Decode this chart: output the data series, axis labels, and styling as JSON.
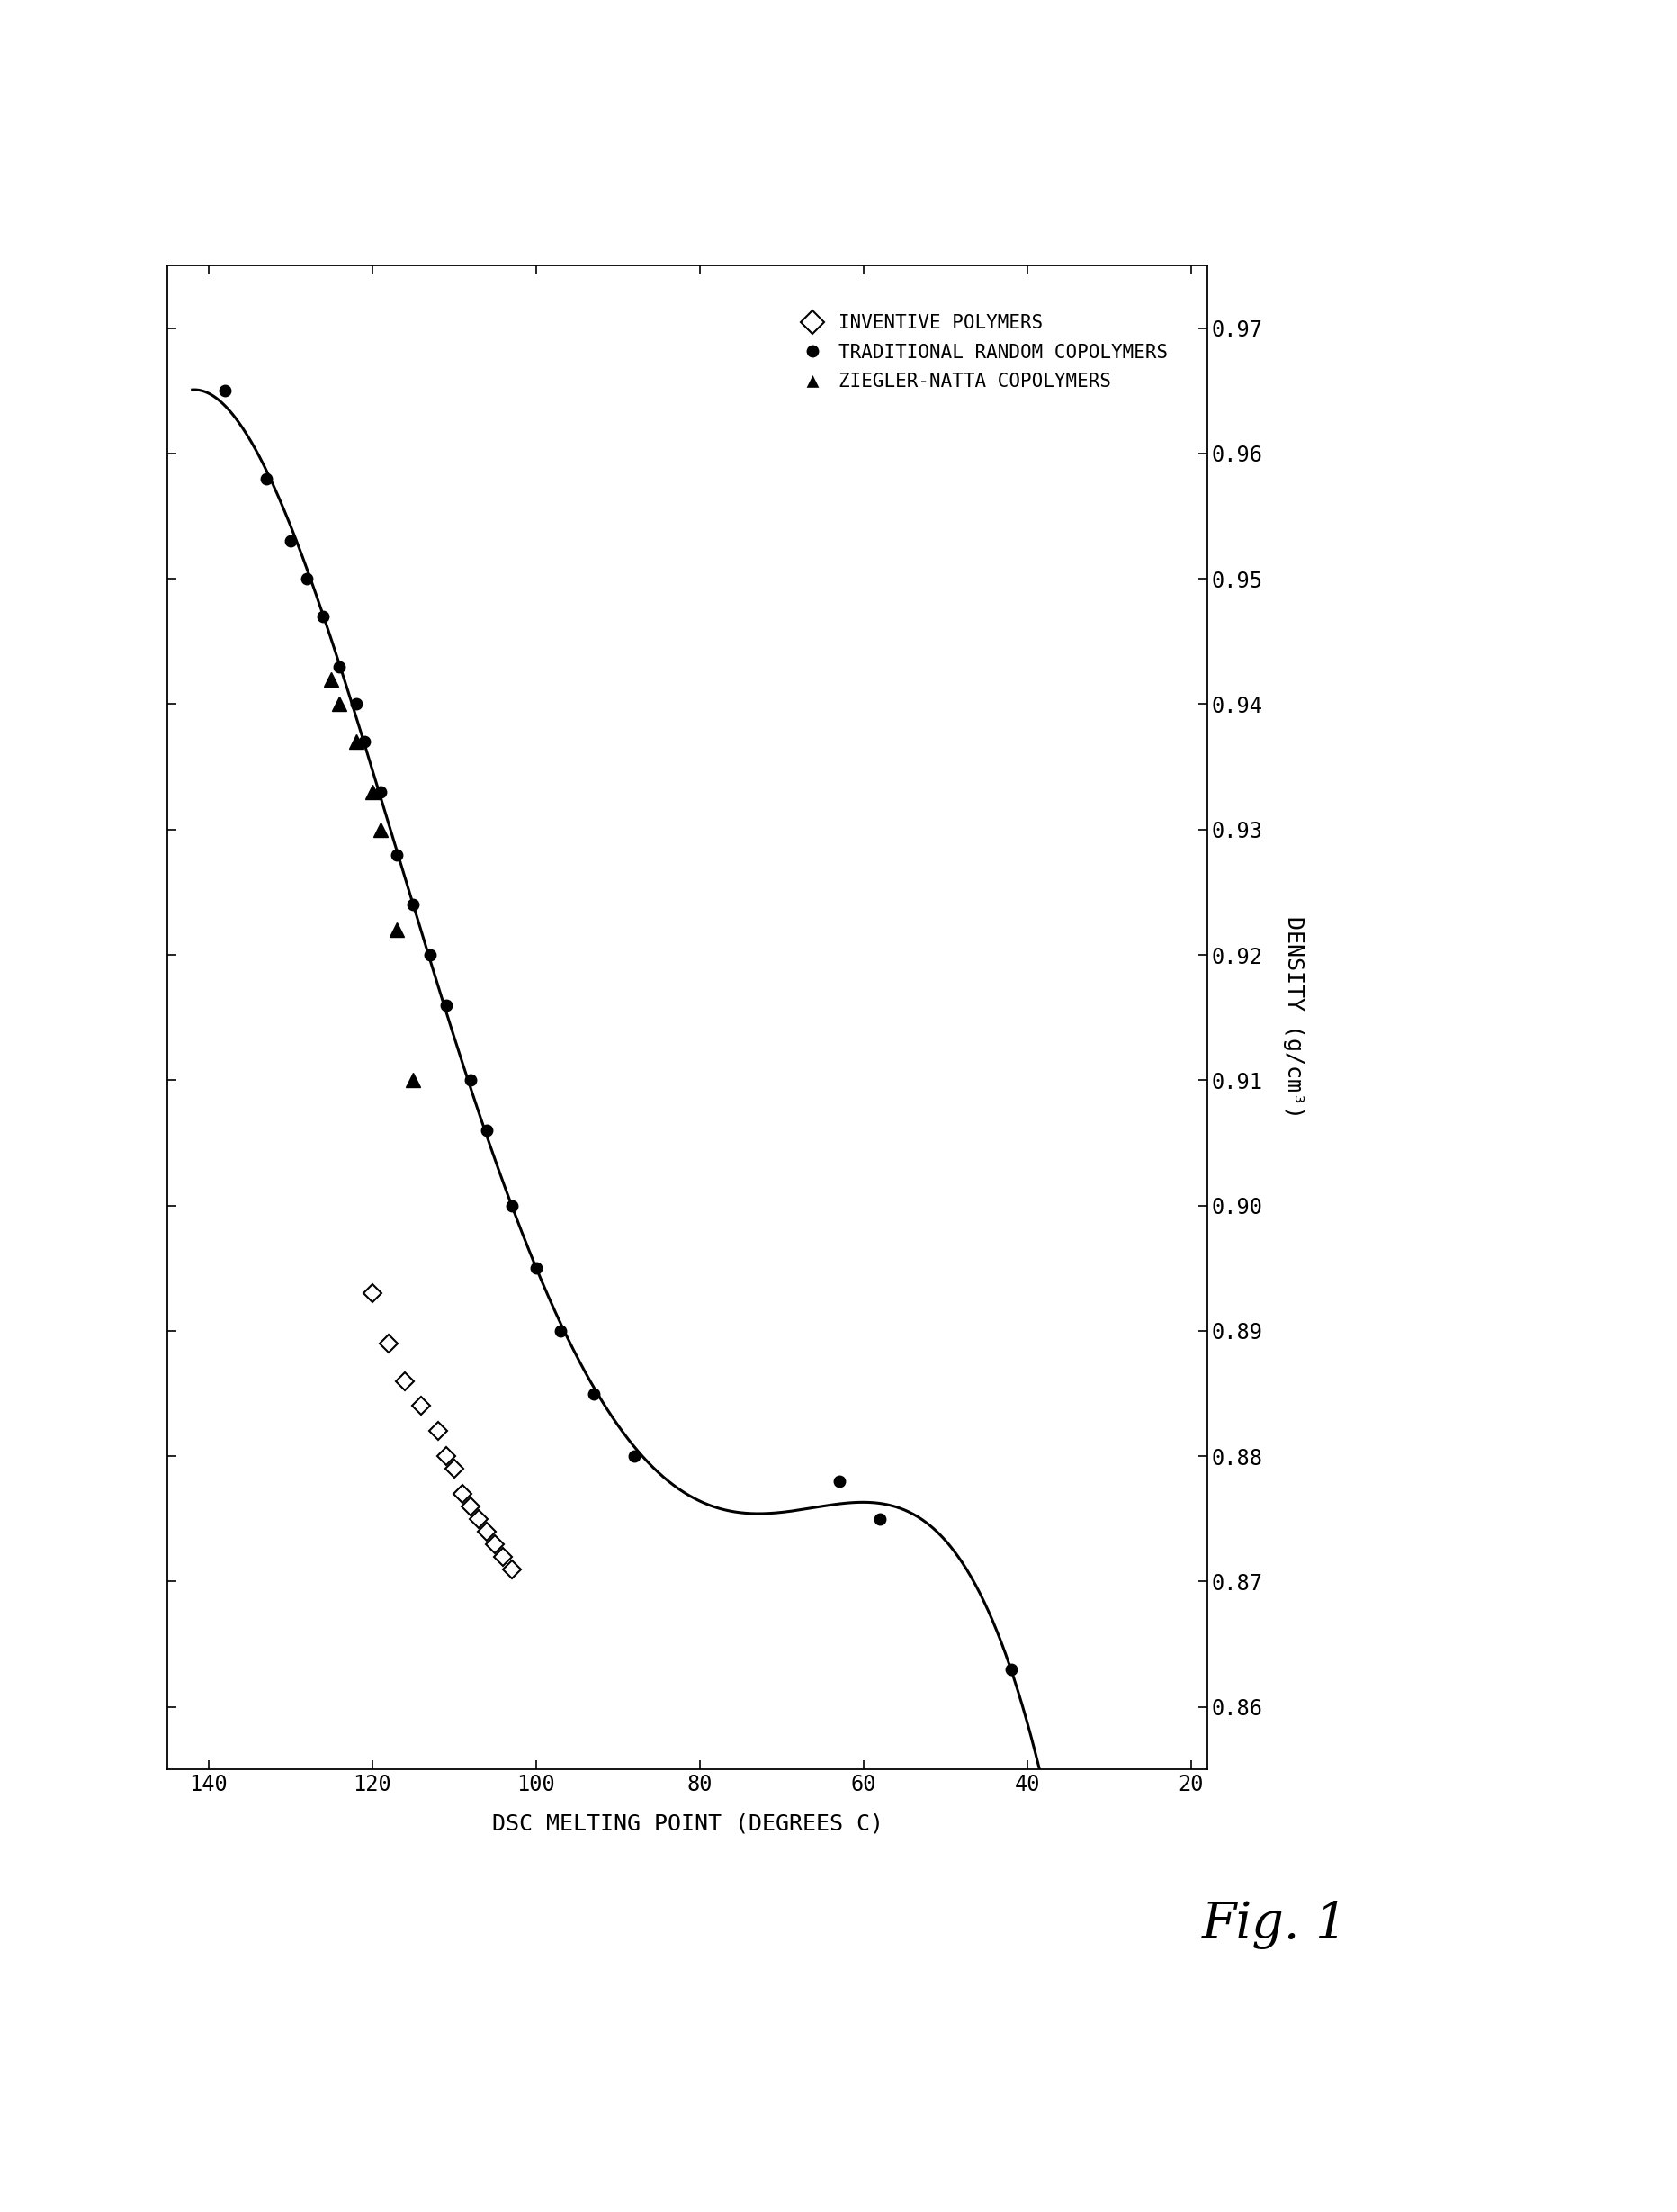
{
  "title": "Fig. 1",
  "xlabel": "DSC MELTING POINT (DEGREES C)",
  "ylabel": "DENSITY (g/cm³)",
  "xticks": [
    140,
    120,
    100,
    80,
    60,
    40,
    20
  ],
  "yticks": [
    0.97,
    0.96,
    0.95,
    0.94,
    0.93,
    0.92,
    0.91,
    0.9,
    0.89,
    0.88,
    0.87,
    0.86
  ],
  "traditional_random": [
    [
      138,
      0.965
    ],
    [
      133,
      0.958
    ],
    [
      130,
      0.953
    ],
    [
      128,
      0.95
    ],
    [
      126,
      0.947
    ],
    [
      124,
      0.943
    ],
    [
      122,
      0.94
    ],
    [
      121,
      0.937
    ],
    [
      119,
      0.933
    ],
    [
      117,
      0.928
    ],
    [
      115,
      0.924
    ],
    [
      113,
      0.92
    ],
    [
      111,
      0.916
    ],
    [
      108,
      0.91
    ],
    [
      106,
      0.906
    ],
    [
      103,
      0.9
    ],
    [
      100,
      0.895
    ],
    [
      97,
      0.89
    ],
    [
      93,
      0.885
    ],
    [
      88,
      0.88
    ],
    [
      63,
      0.878
    ],
    [
      58,
      0.875
    ],
    [
      42,
      0.863
    ]
  ],
  "inventive": [
    [
      120,
      0.893
    ],
    [
      118,
      0.889
    ],
    [
      116,
      0.886
    ],
    [
      114,
      0.884
    ],
    [
      112,
      0.882
    ],
    [
      111,
      0.88
    ],
    [
      110,
      0.879
    ],
    [
      109,
      0.877
    ],
    [
      108,
      0.876
    ],
    [
      107,
      0.875
    ],
    [
      106,
      0.874
    ],
    [
      105,
      0.873
    ],
    [
      104,
      0.872
    ],
    [
      103,
      0.871
    ]
  ],
  "ziegler_natta": [
    [
      125,
      0.942
    ],
    [
      124,
      0.94
    ],
    [
      122,
      0.937
    ],
    [
      120,
      0.933
    ],
    [
      119,
      0.93
    ],
    [
      117,
      0.922
    ],
    [
      115,
      0.91
    ]
  ],
  "background_color": "#ffffff",
  "legend_labels": [
    "INVENTIVE POLYMERS",
    "TRADITIONAL RANDOM COPOLYMERS",
    "ZIEGLER-NATTA COPOLYMERS"
  ]
}
